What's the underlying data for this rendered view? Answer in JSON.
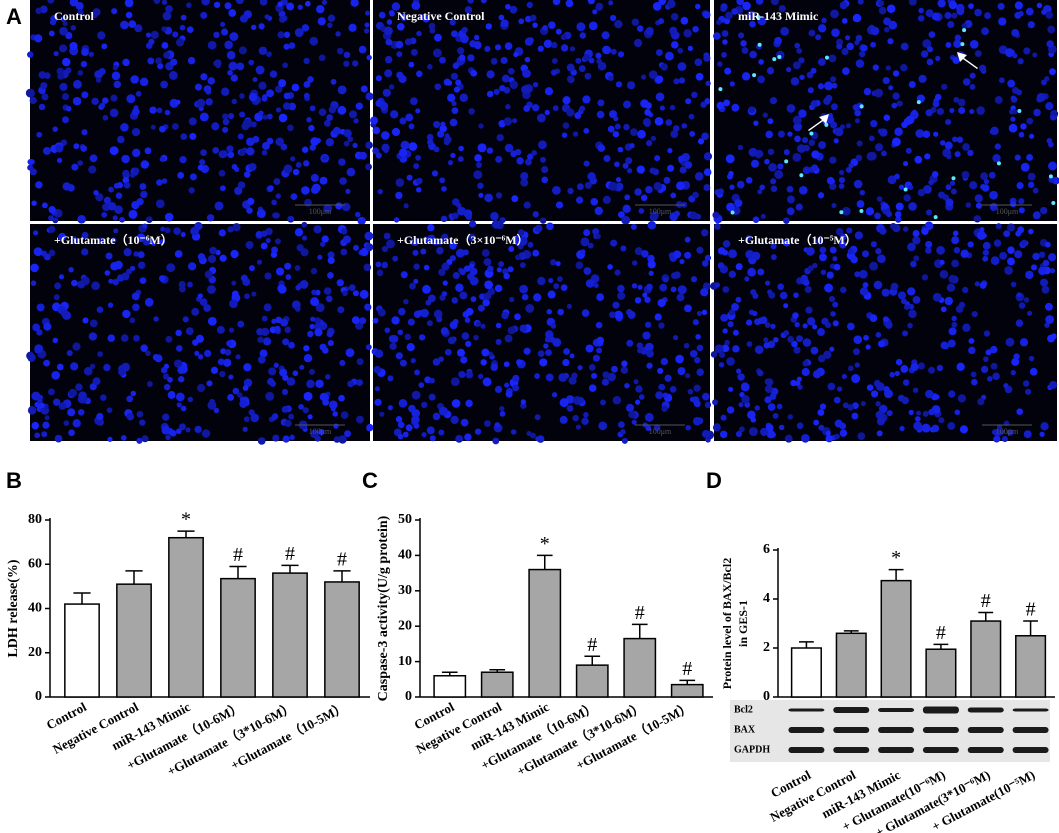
{
  "panel_a": {
    "letter": "A",
    "images": [
      {
        "label": "Control",
        "scale": "100μm"
      },
      {
        "label": "Negative Control",
        "scale": "100μm"
      },
      {
        "label": "miR-143 Mimic",
        "scale": "100μm"
      },
      {
        "label": "+Glutamate（10⁻⁶M）",
        "scale": "100μm"
      },
      {
        "label": "+Glutamate（3×10⁻⁶M）",
        "scale": "100μm"
      },
      {
        "label": "+Glutamate（10⁻⁵M）",
        "scale": "100μm"
      }
    ]
  },
  "chart_data": [
    {
      "type": "bar",
      "panel": "B",
      "ylabel": "LDH release(%)",
      "categories": [
        "Control",
        "Negative Control",
        "miR-143 Mimic",
        "+Glutamate（10-6M）",
        "+Glutamate（3*10-6M）",
        "+Glutamate（10-5M）"
      ],
      "values": [
        42,
        51,
        72,
        53.5,
        56,
        52
      ],
      "errors": [
        5,
        6,
        3,
        5.5,
        3.5,
        5
      ],
      "annotations": [
        null,
        null,
        "*",
        "#",
        "#",
        "#"
      ],
      "colors": [
        "#ffffff",
        "#a6a6a6",
        "#a6a6a6",
        "#a6a6a6",
        "#a6a6a6",
        "#a6a6a6"
      ],
      "ylim": [
        0,
        80
      ],
      "yticks": [
        0,
        20,
        40,
        60,
        80
      ]
    },
    {
      "type": "bar",
      "panel": "C",
      "ylabel": "Caspase-3 activity(U/g protein)",
      "categories": [
        "Control",
        "Negative Control",
        "miR-143 Mimic",
        "+Glutamate（10-6M）",
        "+Glutamate（3*10-6M）",
        "+Glutamate（10-5M）"
      ],
      "values": [
        6,
        7,
        36,
        9,
        16.5,
        3.5
      ],
      "errors": [
        1,
        0.7,
        4,
        2.5,
        4,
        1.2
      ],
      "annotations": [
        null,
        null,
        "*",
        "#",
        "#",
        "#"
      ],
      "colors": [
        "#ffffff",
        "#a6a6a6",
        "#a6a6a6",
        "#a6a6a6",
        "#a6a6a6",
        "#a6a6a6"
      ],
      "ylim": [
        0,
        50
      ],
      "yticks": [
        0,
        10,
        20,
        30,
        40,
        50
      ]
    },
    {
      "type": "bar",
      "panel": "D",
      "ylabel": [
        "Protein level of BAX/Bcl2",
        "in GES-1"
      ],
      "categories": [
        "Control",
        "Negative Control",
        "miR-143 Mimic",
        "+ Glutamate(10⁻⁶M)",
        "+ Glutamate(3*10⁻⁶M)",
        "+ Glutamate(10⁻⁵M)"
      ],
      "values": [
        2.0,
        2.6,
        4.75,
        1.95,
        3.1,
        2.5
      ],
      "errors": [
        0.25,
        0.1,
        0.45,
        0.2,
        0.35,
        0.6
      ],
      "annotations": [
        null,
        null,
        "*",
        "#",
        "#",
        "#"
      ],
      "colors": [
        "#ffffff",
        "#a6a6a6",
        "#a6a6a6",
        "#a6a6a6",
        "#a6a6a6",
        "#a6a6a6"
      ],
      "ylim": [
        0,
        6
      ],
      "yticks": [
        0,
        2,
        4,
        6
      ],
      "blot_rows": [
        "Bcl2",
        "BAX",
        "GAPDH"
      ]
    }
  ]
}
